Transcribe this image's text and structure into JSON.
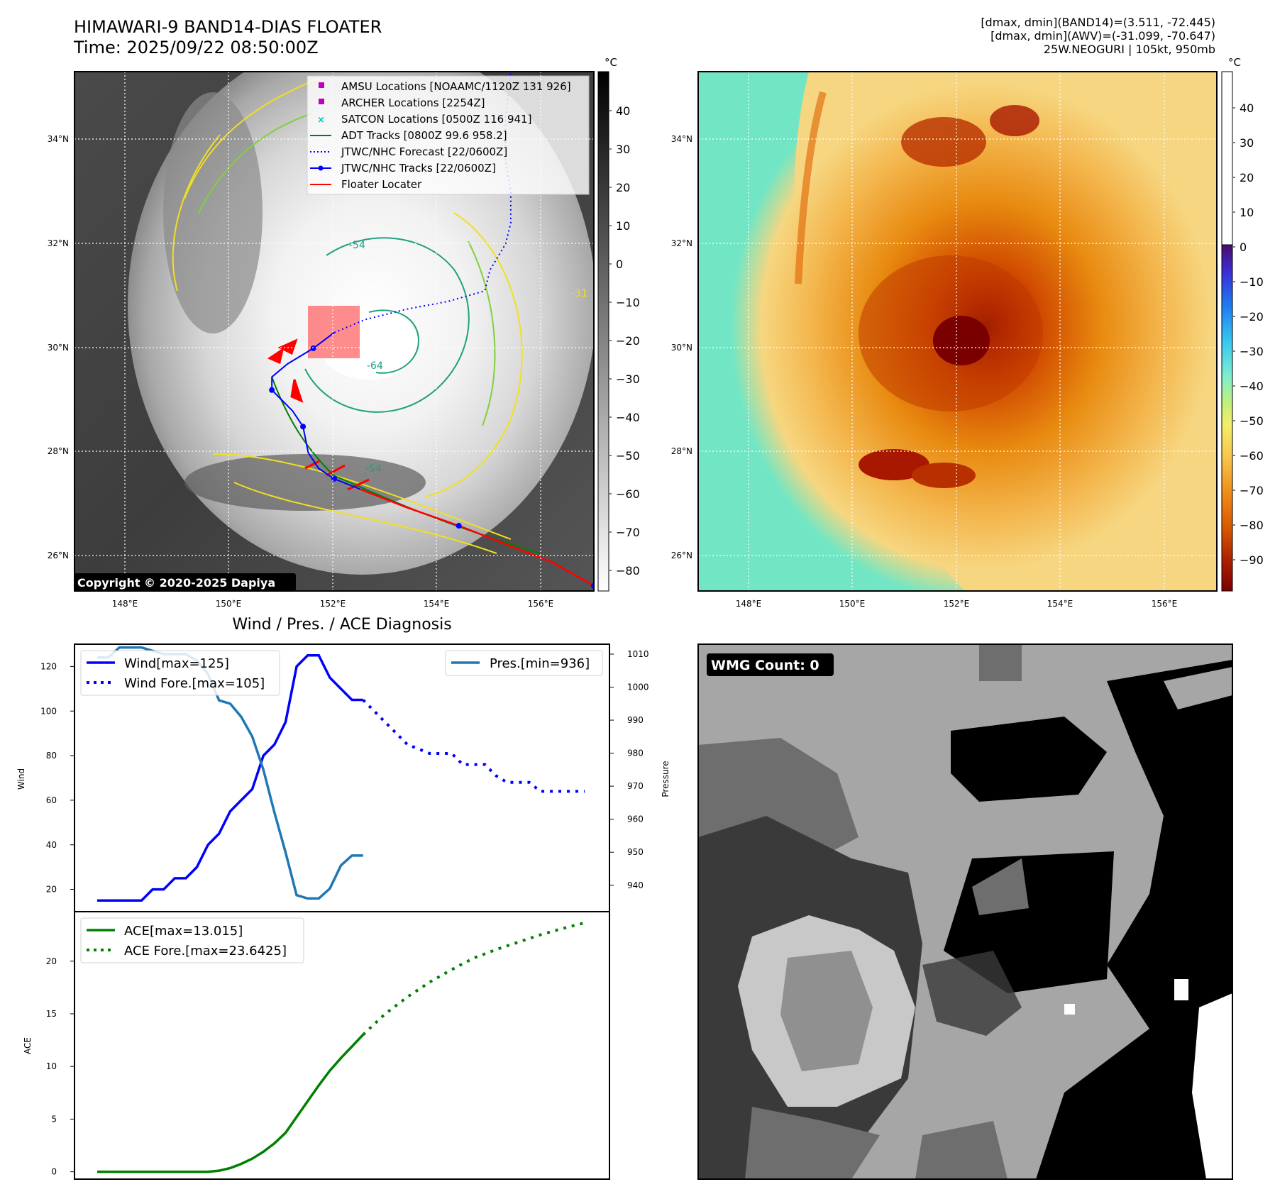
{
  "header": {
    "title_line1": "HIMAWARI-9 BAND14-DIAS FLOATER",
    "title_line2": "Time: 2025/09/22 08:50:00Z",
    "info_line1": "[dmax, dmin](BAND14)=(3.511, -72.445)",
    "info_line2": "[dmax, dmin](AWV)=(-31.099, -70.647)",
    "info_line3": "25W.NEOGURI | 105kt, 950mb"
  },
  "map": {
    "lon_ticks": [
      "148°E",
      "150°E",
      "152°E",
      "154°E",
      "156°E"
    ],
    "lat_ticks": [
      "34°N",
      "32°N",
      "30°N",
      "28°N",
      "26°N"
    ],
    "lon_range": [
      147.0,
      157.0
    ],
    "lat_range": [
      25.35,
      35.3
    ],
    "copyright": "Copyright © 2020-2025 Dapiya",
    "colorbar_unit": "°C",
    "ir_colorbar_ticks": [
      "40",
      "30",
      "20",
      "10",
      "0",
      "−10",
      "−20",
      "−30",
      "−40",
      "−50",
      "−60",
      "−70",
      "−80"
    ],
    "awv_colorbar_ticks": [
      "40",
      "30",
      "20",
      "10",
      "0",
      "−10",
      "−20",
      "−30",
      "−40",
      "−50",
      "−60",
      "−70",
      "−80",
      "−90"
    ],
    "contour_labels": [
      "-54",
      "-64",
      "-54",
      "-31"
    ],
    "legend": [
      {
        "label": "AMSU Locations [NOAAMC/1120Z 131 926]",
        "color": "#c000c0",
        "marker": "square"
      },
      {
        "label": "ARCHER Locations [2254Z]",
        "color": "#c000c0",
        "marker": "square"
      },
      {
        "label": "SATCON Locations [0500Z 116 941]",
        "color": "#00c0c0",
        "marker": "x"
      },
      {
        "label": "ADT Tracks [0800Z 99.6 958.2]",
        "color": "#008000",
        "marker": "line"
      },
      {
        "label": "JTWC/NHC Forecast [22/0600Z]",
        "color": "#0000ff",
        "marker": "dotted"
      },
      {
        "label": "JTWC/NHC Tracks [22/0600Z]",
        "color": "#0000ff",
        "marker": "line-dot"
      },
      {
        "label": "Floater Locater",
        "color": "#ff0000",
        "marker": "line"
      }
    ],
    "best_track": [
      [
        157.0,
        25.45
      ],
      [
        156.2,
        25.9
      ],
      [
        155.3,
        26.25
      ],
      [
        154.4,
        26.6
      ],
      [
        153.4,
        26.95
      ],
      [
        152.5,
        27.3
      ],
      [
        152.0,
        27.5
      ],
      [
        151.7,
        27.7
      ],
      [
        151.5,
        28.0
      ],
      [
        151.4,
        28.5
      ],
      [
        151.2,
        28.8
      ],
      [
        151.0,
        29.0
      ],
      [
        150.8,
        29.2
      ],
      [
        150.8,
        29.45
      ],
      [
        151.1,
        29.7
      ],
      [
        151.6,
        30.0
      ],
      [
        152.0,
        30.3
      ]
    ],
    "forecast_track": [
      [
        152.0,
        30.3
      ],
      [
        152.6,
        30.55
      ],
      [
        153.4,
        30.75
      ],
      [
        154.2,
        30.9
      ],
      [
        154.9,
        31.1
      ],
      [
        155.0,
        31.5
      ],
      [
        155.3,
        32.0
      ],
      [
        155.4,
        32.4
      ],
      [
        155.4,
        33.0
      ],
      [
        155.3,
        33.6
      ],
      [
        155.3,
        34.4
      ],
      [
        155.4,
        35.3
      ]
    ]
  },
  "diagnosis": {
    "title": "Wind / Pres. / ACE Diagnosis",
    "wind_ylabel": "Wind",
    "pres_ylabel": "Pressure",
    "ace_ylabel": "ACE",
    "legend_wind": "Wind[max=125]",
    "legend_wind_fore": "Wind Fore.[max=105]",
    "legend_pres": "Pres.[min=936]",
    "legend_ace": "ACE[max=13.015]",
    "legend_ace_fore": "ACE Fore.[max=23.6425]",
    "wind_ticks": [
      "120",
      "100",
      "80",
      "60",
      "40",
      "20"
    ],
    "pres_ticks": [
      "1010",
      "1000",
      "990",
      "980",
      "970",
      "960",
      "950",
      "940"
    ],
    "ace_ticks": [
      "20",
      "15",
      "10",
      "5",
      "0"
    ]
  },
  "wmg": {
    "label": "WMG Count: 0"
  },
  "chart_data": [
    {
      "type": "line",
      "name": "wind",
      "x": [
        0,
        1,
        2,
        3,
        4,
        5,
        6,
        7,
        8,
        9,
        10,
        11,
        12,
        13,
        14,
        15,
        16,
        17,
        18,
        19,
        20,
        21,
        22,
        23,
        24
      ],
      "values": [
        15,
        15,
        15,
        15,
        15,
        20,
        20,
        25,
        25,
        30,
        40,
        45,
        55,
        60,
        65,
        80,
        85,
        95,
        120,
        125,
        125,
        115,
        110,
        105,
        105
      ],
      "forecast_x": [
        24,
        25,
        26,
        27,
        28,
        29,
        30,
        31,
        32,
        33,
        34,
        35,
        36,
        37,
        38,
        39,
        40,
        41,
        42,
        43,
        44
      ],
      "forecast": [
        105,
        100,
        95,
        90,
        85,
        83,
        81,
        81,
        81,
        76,
        76,
        76,
        71,
        68,
        68,
        68,
        64,
        64,
        64,
        64,
        64
      ],
      "ylim": [
        10,
        130
      ]
    },
    {
      "type": "line",
      "name": "pressure",
      "x": [
        0,
        1,
        2,
        3,
        4,
        5,
        6,
        7,
        8,
        9,
        10,
        11,
        12,
        13,
        14,
        15,
        16,
        17,
        18,
        19,
        20,
        21,
        22,
        23,
        24
      ],
      "values": [
        1009,
        1009,
        1012,
        1012,
        1012,
        1011,
        1010,
        1010,
        1010,
        1008,
        1004,
        996,
        995,
        991,
        985,
        975,
        962,
        950,
        937,
        936,
        936,
        939,
        946,
        949,
        949
      ],
      "ylim": [
        932,
        1013
      ]
    },
    {
      "type": "line",
      "name": "ACE",
      "x": [
        0,
        2,
        4,
        6,
        8,
        9,
        10,
        11,
        12,
        13,
        14,
        15,
        16,
        17,
        18,
        19,
        20,
        21,
        22,
        23,
        24
      ],
      "values": [
        0,
        0,
        0,
        0,
        0,
        0,
        0,
        0.1,
        0.35,
        0.75,
        1.25,
        1.9,
        2.7,
        3.7,
        5.2,
        6.7,
        8.2,
        9.6,
        10.8,
        11.9,
        13.015
      ],
      "forecast_x": [
        24,
        26,
        28,
        30,
        32,
        34,
        36,
        38,
        40,
        42,
        44
      ],
      "forecast": [
        13.015,
        15.0,
        16.6,
        18.0,
        19.2,
        20.3,
        21.1,
        21.8,
        22.5,
        23.1,
        23.6425
      ],
      "ylim": [
        -0.7,
        24.7
      ]
    }
  ]
}
